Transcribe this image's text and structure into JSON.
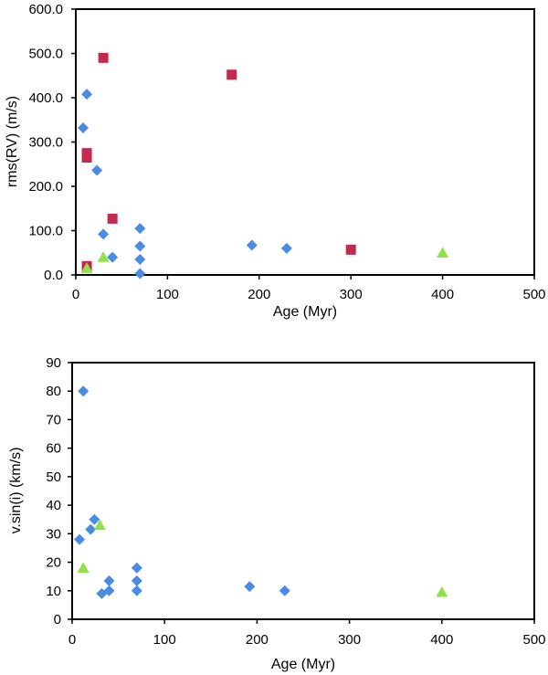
{
  "chart_data": [
    {
      "type": "scatter",
      "title": "",
      "xlabel": "Age (Myr)",
      "ylabel": "rms(RV) (m/s)",
      "xlim": [
        0,
        500
      ],
      "ylim": [
        0,
        600
      ],
      "xticks": [
        "0",
        "100",
        "200",
        "300",
        "400",
        "500"
      ],
      "yticks": [
        "0.0",
        "100.0",
        "200.0",
        "300.0",
        "400.0",
        "500.0",
        "600.0"
      ],
      "grid": false,
      "legend": "none",
      "series": [
        {
          "name": "blue diamonds",
          "marker": "diamond",
          "color": "#4a8be3",
          "points": [
            [
              8,
              332
            ],
            [
              12,
              408
            ],
            [
              23,
              236
            ],
            [
              30,
              92
            ],
            [
              40,
              40
            ],
            [
              70,
              105
            ],
            [
              70,
              65
            ],
            [
              70,
              35
            ],
            [
              70,
              3
            ],
            [
              192,
              67
            ],
            [
              230,
              60
            ]
          ]
        },
        {
          "name": "red squares",
          "marker": "square",
          "color": "#c42a4a",
          "points": [
            [
              30,
              490
            ],
            [
              12,
              275
            ],
            [
              12,
              265
            ],
            [
              40,
              127
            ],
            [
              12,
              20
            ],
            [
              170,
              452
            ],
            [
              300,
              57
            ]
          ]
        },
        {
          "name": "green triangles",
          "marker": "triangle",
          "color": "#8fe34a",
          "points": [
            [
              30,
              40
            ],
            [
              12,
              15
            ],
            [
              400,
              50
            ]
          ]
        }
      ]
    },
    {
      "type": "scatter",
      "title": "",
      "xlabel": "Age (Myr)",
      "ylabel": "v.sin(i) (km/s)",
      "xlim": [
        0,
        500
      ],
      "ylim": [
        0,
        90
      ],
      "xticks": [
        "0",
        "100",
        "200",
        "300",
        "400",
        "500"
      ],
      "yticks": [
        "0",
        "10",
        "20",
        "30",
        "40",
        "50",
        "60",
        "70",
        "80",
        "90"
      ],
      "grid": false,
      "legend": "none",
      "series": [
        {
          "name": "blue diamonds",
          "marker": "diamond",
          "color": "#4a8be3",
          "points": [
            [
              12,
              80
            ],
            [
              8,
              28
            ],
            [
              20,
              31.5
            ],
            [
              24,
              35
            ],
            [
              32,
              9
            ],
            [
              40,
              13.5
            ],
            [
              40,
              10
            ],
            [
              70,
              18
            ],
            [
              70,
              13.5
            ],
            [
              70,
              10
            ],
            [
              192,
              11.5
            ],
            [
              230,
              10
            ]
          ]
        },
        {
          "name": "green triangles",
          "marker": "triangle",
          "color": "#8fe34a",
          "points": [
            [
              12,
              18
            ],
            [
              30,
              33
            ],
            [
              400,
              9.5
            ]
          ]
        }
      ]
    }
  ]
}
